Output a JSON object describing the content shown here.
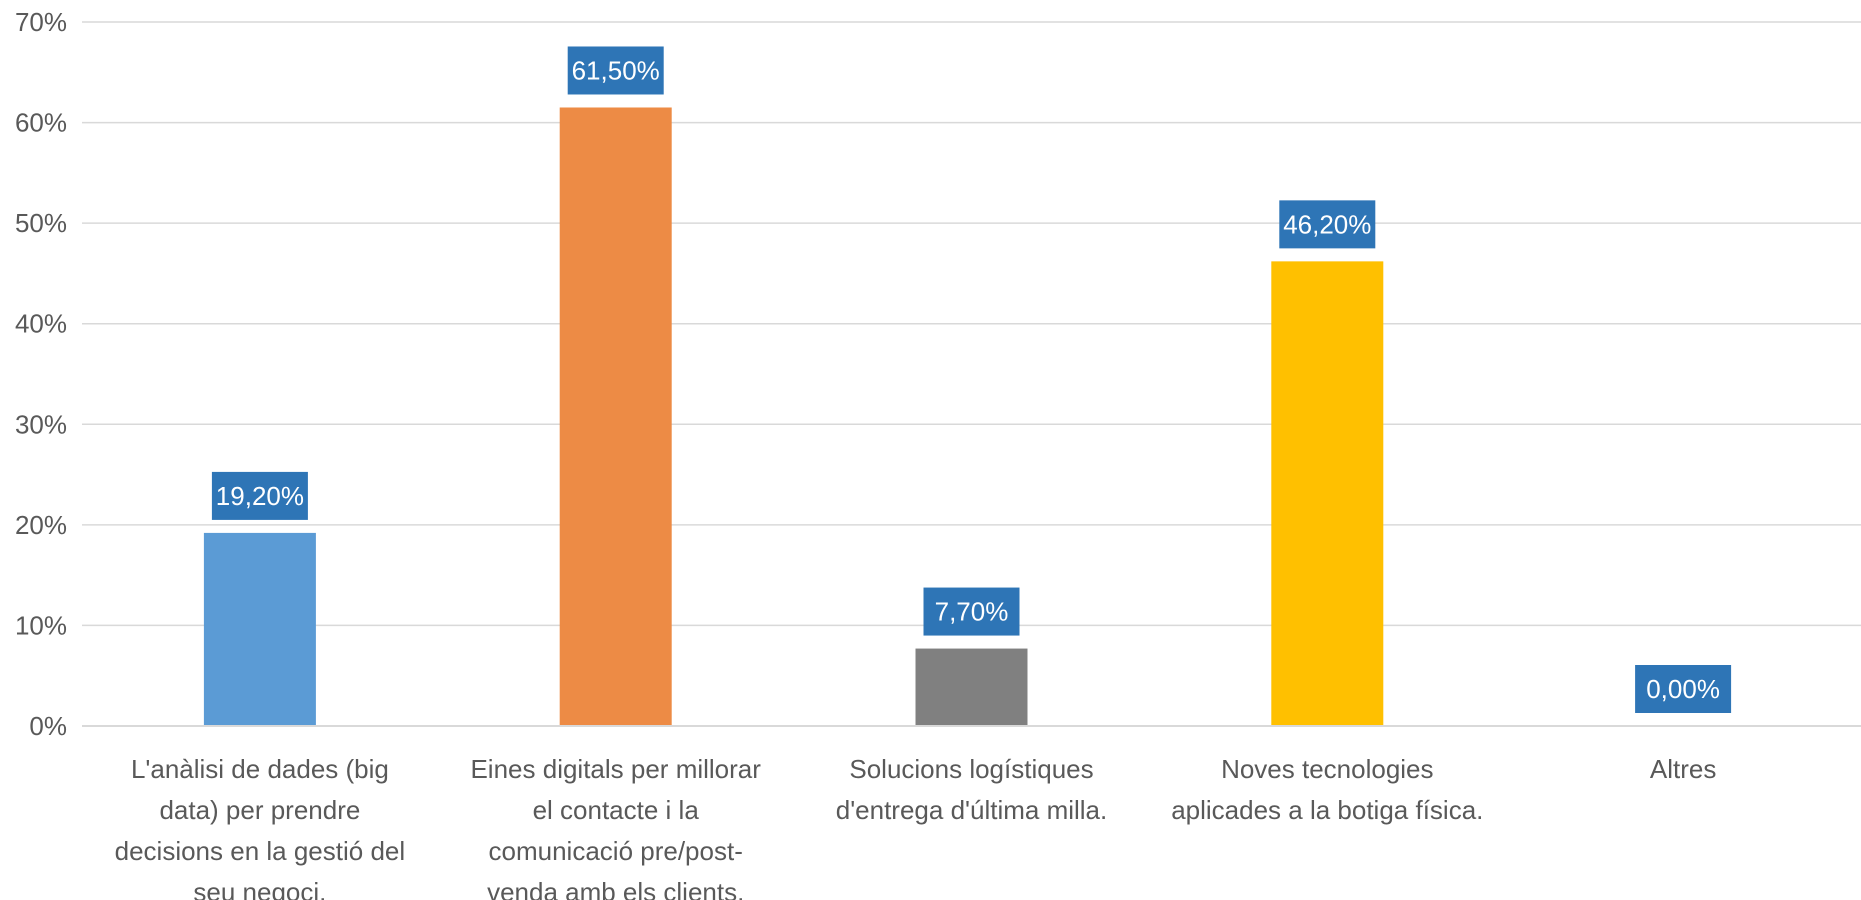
{
  "chart_data": {
    "type": "bar",
    "categories": [
      [
        "L'anàlisi de dades (big",
        "data) per prendre",
        "decisions en la gestió del",
        "seu negoci."
      ],
      [
        "Eines digitals per millorar",
        "el contacte i la",
        "comunicació pre/post-",
        "venda amb els clients."
      ],
      [
        "Solucions logístiques",
        "d'entrega d'última milla."
      ],
      [
        "Noves tecnologies",
        "aplicades a la botiga física."
      ],
      [
        "Altres"
      ]
    ],
    "values": [
      19.2,
      61.5,
      7.7,
      46.2,
      0.0
    ],
    "data_labels": [
      "19,20%",
      "61,50%",
      "7,70%",
      "46,20%",
      "0,00%"
    ],
    "bar_colors": [
      "#5B9BD5",
      "#ED8B45",
      "#808080",
      "#FFC000",
      "#5B9BD5"
    ],
    "label_box_color": "#2E75B6",
    "ylim": [
      0,
      70
    ],
    "yticks": [
      0,
      10,
      20,
      30,
      40,
      50,
      60,
      70
    ],
    "ytick_labels": [
      "0%",
      "10%",
      "20%",
      "30%",
      "40%",
      "50%",
      "60%",
      "70%"
    ],
    "grid": true,
    "title": "",
    "xlabel": "",
    "ylabel": ""
  }
}
